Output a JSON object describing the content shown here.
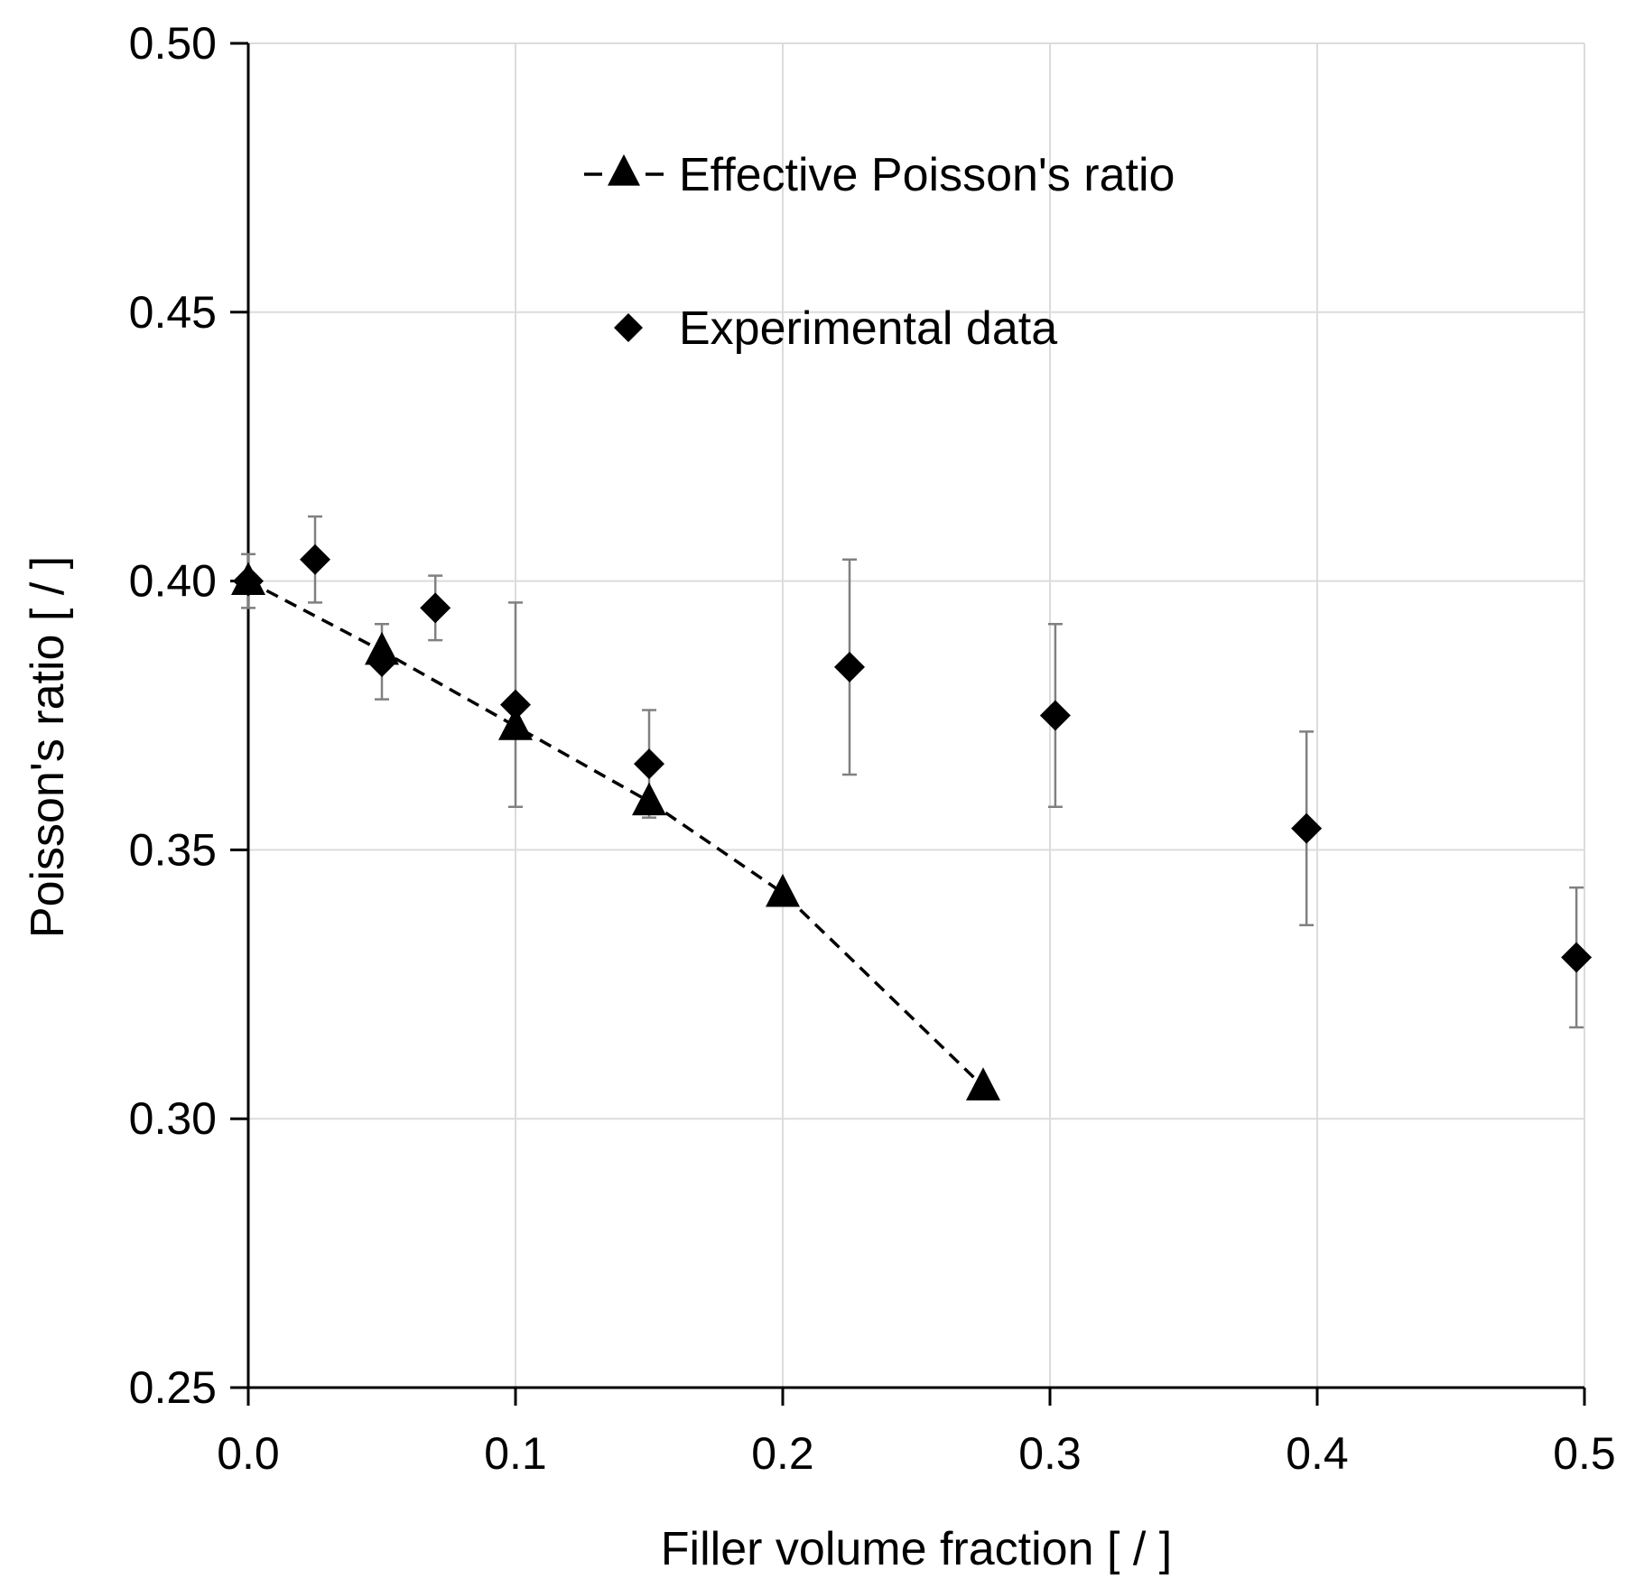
{
  "chart_data": {
    "type": "scatter",
    "title": "",
    "xlabel": "Filler volume fraction [ / ]",
    "ylabel": "Poisson's ratio [ / ]",
    "xlim": [
      0,
      0.5
    ],
    "ylim": [
      0.25,
      0.5
    ],
    "grid": true,
    "x_ticks": [
      "0.0",
      "0.1",
      "0.2",
      "0.3",
      "0.4",
      "0.5"
    ],
    "x_tick_values": [
      0,
      0.1,
      0.2,
      0.3,
      0.4,
      0.5
    ],
    "y_ticks": [
      "0.25",
      "0.30",
      "0.35",
      "0.40",
      "0.45",
      "0.50"
    ],
    "y_tick_values": [
      0.25,
      0.3,
      0.35,
      0.4,
      0.45,
      0.5
    ],
    "legend_position": "top-center",
    "series": [
      {
        "name": "Effective Poisson's ratio",
        "marker": "triangle",
        "line": "dashed",
        "color": "#000000",
        "x": [
          0,
          0.05,
          0.1,
          0.15,
          0.2,
          0.275
        ],
        "y": [
          0.4,
          0.387,
          0.373,
          0.359,
          0.342,
          0.306
        ]
      },
      {
        "name": "Experimental data",
        "marker": "diamond",
        "line": "none",
        "color": "#000000",
        "x": [
          0,
          0.025,
          0.05,
          0.07,
          0.1,
          0.15,
          0.225,
          0.302,
          0.396,
          0.497
        ],
        "y": [
          0.4,
          0.404,
          0.385,
          0.395,
          0.377,
          0.366,
          0.384,
          0.375,
          0.354,
          0.33
        ],
        "error": [
          0.005,
          0.008,
          0.007,
          0.006,
          0.019,
          0.01,
          0.02,
          0.017,
          0.018,
          0.013
        ]
      }
    ]
  }
}
